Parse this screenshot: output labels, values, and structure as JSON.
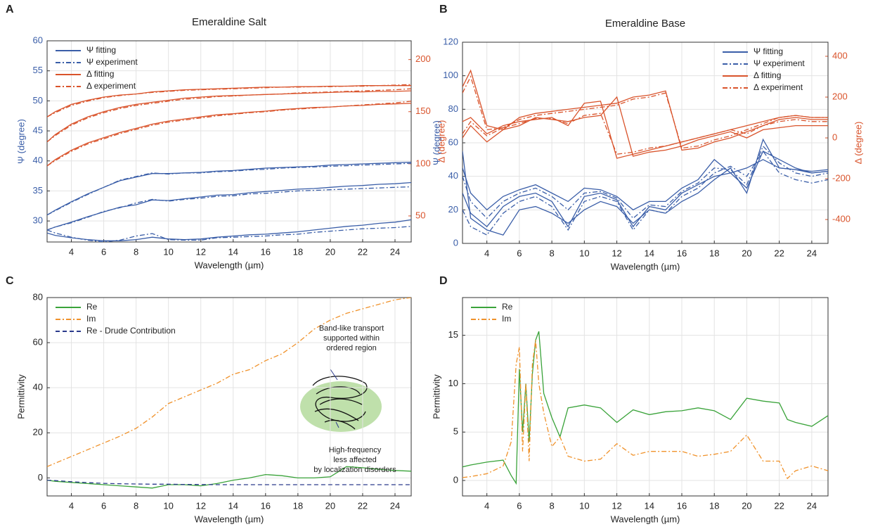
{
  "chart_data": [
    {
      "type": "line",
      "label": "A",
      "title": "Emeraldine Salt",
      "xlabel": "Wavelength (µm)",
      "ylabel": "Ψ (degree)",
      "y2label": "Δ (degree)",
      "y_color": "#3a5ea8",
      "y2_color": "#d9532b",
      "grid": true,
      "legend": "upper left",
      "xlim": [
        2.5,
        25
      ],
      "xticks": [
        4,
        6,
        8,
        10,
        12,
        14,
        16,
        18,
        20,
        22,
        24
      ],
      "ylim": [
        26.5,
        60
      ],
      "yticks": [
        30,
        35,
        40,
        45,
        50,
        55,
        60
      ],
      "y2lim": [
        25,
        218
      ],
      "y2ticks": [
        50,
        100,
        150,
        200
      ],
      "x": [
        2.5,
        3,
        4,
        5,
        6,
        7,
        8,
        9,
        10,
        11,
        12,
        13,
        14,
        15,
        16,
        17,
        18,
        19,
        20,
        21,
        22,
        23,
        24,
        25
      ],
      "series": [
        {
          "name": "Ψ fitting",
          "color": "#3a5ea8",
          "dash": "solid",
          "values": [
            [
              31,
              31.8,
              33.2,
              34.5,
              35.6,
              36.7,
              37.3,
              37.9,
              37.9,
              38,
              38.1,
              38.3,
              38.4,
              38.6,
              38.8,
              38.9,
              39,
              39.1,
              39.3,
              39.4,
              39.5,
              39.6,
              39.7,
              39.8
            ],
            [
              28.5,
              29,
              29.8,
              30.7,
              31.5,
              32.3,
              32.7,
              33.5,
              33.4,
              33.7,
              34,
              34.3,
              34.4,
              34.7,
              34.9,
              35.1,
              35.3,
              35.4,
              35.6,
              35.8,
              35.9,
              36.1,
              36.2,
              36.4
            ],
            [
              28,
              27.6,
              27.2,
              26.9,
              26.7,
              26.7,
              26.9,
              27.3,
              27,
              26.9,
              27,
              27.3,
              27.5,
              27.7,
              27.8,
              28,
              28.2,
              28.5,
              28.8,
              29.1,
              29.3,
              29.6,
              29.8,
              30.2
            ]
          ]
        },
        {
          "name": "Ψ experiment",
          "color": "#3a5ea8",
          "dash": "dashdot",
          "values": [
            [
              31,
              31.7,
              33.1,
              34.4,
              35.6,
              36.8,
              37.4,
              38,
              37.8,
              38,
              38,
              38.2,
              38.3,
              38.5,
              38.6,
              38.8,
              38.9,
              39,
              39.1,
              39.2,
              39.3,
              39.4,
              39.5,
              39.6
            ],
            [
              28.5,
              29,
              29.7,
              30.6,
              31.6,
              32.2,
              33,
              33.6,
              33.3,
              33.6,
              33.8,
              34.1,
              34.2,
              34.5,
              34.6,
              34.8,
              35,
              35.1,
              35.2,
              35.3,
              35.4,
              35.5,
              35.6,
              35.7
            ],
            [
              28.5,
              28,
              27.3,
              26.8,
              26.5,
              26.8,
              27.5,
              27.9,
              26.9,
              26.8,
              26.8,
              27.2,
              27.3,
              27.4,
              27.5,
              27.7,
              27.8,
              28.1,
              28.3,
              28.5,
              28.7,
              28.8,
              28.9,
              29.1
            ]
          ]
        },
        {
          "name": "Δ fitting",
          "color": "#d9532b",
          "dash": "solid",
          "axis": "y2",
          "values": [
            [
              145,
              150,
              157,
              161,
              164,
              166,
              167,
              169,
              170,
              171,
              171.5,
              172,
              172.5,
              173,
              173.5,
              173.5,
              174,
              174,
              174.5,
              174.5,
              175,
              175,
              175,
              175
            ],
            [
              121,
              128,
              138,
              145,
              150,
              154,
              157,
              159,
              161,
              163,
              164,
              165,
              165.5,
              166,
              166.5,
              167,
              167.5,
              168,
              168.5,
              169,
              169,
              169.5,
              169.5,
              170
            ],
            [
              98,
              104,
              113,
              120,
              125,
              130,
              134,
              138,
              141,
              143,
              145,
              147,
              148,
              149.5,
              150.5,
              152,
              153,
              154,
              154.5,
              155.5,
              156,
              157,
              157.5,
              158
            ]
          ]
        },
        {
          "name": "Δ experiment",
          "color": "#d9532b",
          "dash": "dashdot",
          "axis": "y2",
          "values": [
            [
              145,
              149,
              156,
              160,
              163.5,
              165.5,
              167,
              168.5,
              169.5,
              170.5,
              171,
              171.5,
              172,
              172.5,
              173,
              173.5,
              173.5,
              174,
              174,
              174.5,
              174.5,
              175,
              175.5,
              176
            ],
            [
              121,
              127,
              137,
              144,
              149,
              153,
              156,
              158,
              160,
              162,
              163,
              164.5,
              165,
              166,
              166.5,
              167,
              168,
              168.5,
              169,
              169.5,
              170,
              170.5,
              171,
              172
            ],
            [
              98,
              103,
              112,
              119,
              124,
              129,
              133,
              137,
              140,
              142,
              144,
              146,
              147.5,
              149,
              150,
              151.5,
              152.5,
              153.5,
              154.5,
              155.5,
              156.5,
              157.5,
              158.5,
              160
            ]
          ]
        }
      ]
    },
    {
      "type": "line",
      "label": "B",
      "title": "Emeraldine Base",
      "xlabel": "Wavelength (µm)",
      "ylabel": "Ψ (degree)",
      "y2label": "Δ (degree)",
      "y_color": "#3a5ea8",
      "y2_color": "#d9532b",
      "grid": true,
      "legend": "upper right",
      "xlim": [
        2.5,
        25
      ],
      "xticks": [
        4,
        6,
        8,
        10,
        12,
        14,
        16,
        18,
        20,
        22,
        24
      ],
      "ylim": [
        0,
        120
      ],
      "yticks": [
        0,
        20,
        40,
        60,
        80,
        100,
        120
      ],
      "y2lim": [
        -517,
        469
      ],
      "y2ticks": [
        -400,
        -200,
        0,
        200,
        400
      ],
      "x": [
        2.5,
        3,
        4,
        5,
        6,
        7,
        8,
        9,
        10,
        11,
        12,
        13,
        14,
        15,
        16,
        17,
        18,
        19,
        20,
        21,
        22,
        23,
        24,
        25
      ],
      "series": [
        {
          "name": "Ψ fitting",
          "color": "#3a5ea8",
          "dash": "solid",
          "values": [
            [
              45,
              30,
              20,
              28,
              32,
              35,
              30,
              25,
              33,
              32,
              28,
              20,
              25,
              25,
              33,
              38,
              50,
              42,
              33,
              55,
              50,
              45,
              42,
              43
            ],
            [
              30,
              18,
              10,
              22,
              28,
              30,
              25,
              10,
              28,
              30,
              26,
              10,
              22,
              20,
              30,
              35,
              40,
              42,
              45,
              50,
              45,
              44,
              43,
              44
            ],
            [
              55,
              15,
              8,
              5,
              20,
              22,
              18,
              12,
              20,
              25,
              22,
              12,
              20,
              18,
              25,
              30,
              38,
              45,
              30,
              62,
              45,
              44,
              42,
              43
            ]
          ]
        },
        {
          "name": "Ψ experiment",
          "color": "#3a5ea8",
          "dash": "dashdot",
          "values": [
            [
              40,
              25,
              15,
              25,
              30,
              33,
              28,
              20,
              30,
              31,
              27,
              15,
              23,
              22,
              31,
              36,
              45,
              44,
              35,
              58,
              48,
              42,
              40,
              42
            ],
            [
              20,
              10,
              5,
              18,
              25,
              28,
              22,
              8,
              25,
              28,
              25,
              8,
              20,
              18,
              28,
              33,
              42,
              46,
              40,
              55,
              42,
              38,
              36,
              38
            ]
          ]
        },
        {
          "name": "Δ fitting",
          "color": "#d9532b",
          "dash": "solid",
          "axis": "y2",
          "values": [
            [
              250,
              330,
              60,
              40,
              100,
              120,
              130,
              140,
              150,
              160,
              170,
              200,
              210,
              230,
              -60,
              -50,
              -20,
              0,
              30,
              60,
              90,
              100,
              90,
              90
            ],
            [
              80,
              100,
              20,
              60,
              80,
              90,
              100,
              60,
              170,
              180,
              -100,
              -80,
              -60,
              -40,
              -20,
              0,
              20,
              40,
              60,
              80,
              100,
              110,
              100,
              100
            ],
            [
              0,
              60,
              -20,
              40,
              60,
              100,
              90,
              80,
              100,
              110,
              200,
              -90,
              -70,
              -60,
              -40,
              -10,
              10,
              30,
              0,
              40,
              50,
              60,
              60,
              60
            ]
          ]
        },
        {
          "name": "Δ experiment",
          "color": "#d9532b",
          "dash": "dashdot",
          "axis": "y2",
          "values": [
            [
              220,
              300,
              40,
              50,
              90,
              110,
              120,
              130,
              140,
              150,
              160,
              190,
              200,
              220,
              -50,
              -40,
              -10,
              10,
              40,
              70,
              100,
              110,
              100,
              100
            ],
            [
              20,
              80,
              10,
              50,
              70,
              95,
              95,
              70,
              110,
              120,
              -80,
              -70,
              -50,
              -40,
              -20,
              0,
              20,
              40,
              20,
              60,
              80,
              90,
              80,
              80
            ]
          ]
        }
      ]
    },
    {
      "type": "line",
      "label": "C",
      "xlabel": "Wavelength (µm)",
      "ylabel": "Permittivity",
      "grid": true,
      "legend": "upper left",
      "xlim": [
        2.5,
        25
      ],
      "xticks": [
        4,
        6,
        8,
        10,
        12,
        14,
        16,
        18,
        20,
        22,
        24
      ],
      "ylim": [
        -8,
        80
      ],
      "yticks": [
        0,
        20,
        40,
        60,
        80
      ],
      "annotations": [
        [
          "Band-like transport",
          "supported within",
          "ordered region"
        ],
        [
          "High-frequency",
          "less affected",
          "by localization disorders"
        ]
      ],
      "x": [
        2.5,
        3,
        4,
        5,
        6,
        7,
        8,
        9,
        10,
        11,
        12,
        13,
        14,
        15,
        16,
        17,
        18,
        19,
        20,
        21,
        22,
        23,
        24,
        25
      ],
      "series": [
        {
          "name": "Re",
          "color": "#3aa33a",
          "dash": "solid",
          "values": [
            -1,
            -1.5,
            -2,
            -2.5,
            -3,
            -3.5,
            -4,
            -4.5,
            -3,
            -3,
            -3.5,
            -2.5,
            -1,
            0,
            1.5,
            1,
            0,
            0,
            0.5,
            5,
            4.5,
            3.8,
            3.3,
            3
          ]
        },
        {
          "name": "Im",
          "color": "#f0922b",
          "dash": "dashdot",
          "values": [
            5,
            6.5,
            9.5,
            12.5,
            15.5,
            18.5,
            22,
            27,
            33,
            36,
            39,
            42,
            46,
            48,
            52,
            55,
            60,
            66,
            70,
            73,
            75,
            77,
            79,
            80
          ]
        },
        {
          "name": "Re - Drude Contribution",
          "color": "#2b3a8c",
          "dash": "dashed",
          "values": [
            -1,
            -1.2,
            -1.7,
            -2.1,
            -2.4,
            -2.6,
            -2.7,
            -2.8,
            -2.8,
            -2.9,
            -2.9,
            -3,
            -3,
            -3,
            -3,
            -3,
            -3,
            -3,
            -3,
            -3,
            -3,
            -3,
            -3,
            -3
          ]
        }
      ]
    },
    {
      "type": "line",
      "label": "D",
      "xlabel": "Wavelength (µm)",
      "ylabel": "Permittivity",
      "grid": true,
      "legend": "upper left",
      "xlim": [
        2.5,
        25
      ],
      "xticks": [
        4,
        6,
        8,
        10,
        12,
        14,
        16,
        18,
        20,
        22,
        24
      ],
      "ylim": [
        -1.6,
        18.9
      ],
      "yticks": [
        0,
        5,
        10,
        15
      ],
      "x": [
        2.5,
        3,
        4,
        5,
        5.5,
        5.8,
        6,
        6.2,
        6.4,
        6.6,
        6.8,
        7,
        7.2,
        7.5,
        8,
        8.5,
        9,
        10,
        11,
        12,
        13,
        14,
        15,
        16,
        17,
        18,
        19,
        20,
        21,
        22,
        22.5,
        23,
        24,
        25
      ],
      "series": [
        {
          "name": "Re",
          "color": "#3aa33a",
          "dash": "solid",
          "values": [
            1.4,
            1.6,
            1.9,
            2.1,
            0.5,
            -0.3,
            11.5,
            5,
            10,
            4,
            11,
            14.5,
            15.4,
            9,
            6.5,
            4.5,
            7.5,
            7.8,
            7.5,
            6,
            7.3,
            6.8,
            7.1,
            7.2,
            7.5,
            7.2,
            6.3,
            8.5,
            8.2,
            8,
            6.3,
            6,
            5.6,
            6.7
          ]
        },
        {
          "name": "Im",
          "color": "#f0922b",
          "dash": "dashdot",
          "values": [
            0.3,
            0.4,
            0.7,
            1.5,
            4,
            12,
            13.8,
            3,
            10,
            2,
            12,
            14.5,
            10,
            7,
            3.5,
            4.5,
            2.5,
            2,
            2.2,
            3.8,
            2.6,
            3,
            3,
            3,
            2.5,
            2.7,
            3,
            4.7,
            2,
            2,
            0.2,
            1,
            1.5,
            1
          ]
        }
      ]
    }
  ]
}
